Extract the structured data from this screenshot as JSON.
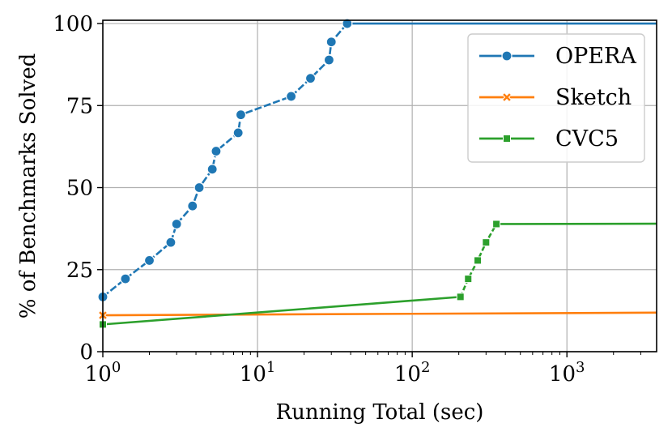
{
  "chart_data": {
    "type": "line",
    "xscale": "log",
    "xlabel": "Running Total (sec)",
    "ylabel": "% of Benchmarks Solved",
    "xlim": [
      1,
      3800
    ],
    "ylim": [
      0,
      101
    ],
    "x_ticks": [
      {
        "value": 1,
        "base": "10",
        "exp": "0"
      },
      {
        "value": 10,
        "base": "10",
        "exp": "1"
      },
      {
        "value": 100,
        "base": "10",
        "exp": "2"
      },
      {
        "value": 1000,
        "base": "10",
        "exp": "3"
      }
    ],
    "y_ticks": [
      {
        "value": 0,
        "label": "0"
      },
      {
        "value": 25,
        "label": "25"
      },
      {
        "value": 50,
        "label": "50"
      },
      {
        "value": 75,
        "label": "75"
      },
      {
        "value": 100,
        "label": "100"
      }
    ],
    "grid": true,
    "legend_position": "top-right",
    "series": [
      {
        "name": "Opera",
        "legend_label": "OPERA",
        "color": "#1f77b4",
        "marker": "circle",
        "points": [
          [
            1.0,
            16.7
          ],
          [
            1.4,
            22.2
          ],
          [
            2.0,
            27.8
          ],
          [
            2.75,
            33.3
          ],
          [
            3.0,
            38.9
          ],
          [
            3.8,
            44.4
          ],
          [
            4.2,
            50.0
          ],
          [
            5.1,
            55.6
          ],
          [
            5.4,
            61.1
          ],
          [
            7.5,
            66.7
          ],
          [
            7.8,
            72.2
          ],
          [
            16.5,
            77.8
          ],
          [
            22.0,
            83.3
          ],
          [
            29.0,
            88.9
          ],
          [
            30.0,
            94.4
          ],
          [
            38.0,
            100.0
          ]
        ],
        "tail_to": 3800
      },
      {
        "name": "Sketch",
        "legend_label": "Sketch",
        "color": "#ff7f0e",
        "marker": "x",
        "points": [
          [
            1.0,
            11.1
          ]
        ],
        "tail_to": 3800,
        "tail_value": 11.9
      },
      {
        "name": "CVC5",
        "legend_label": "CVC5",
        "color": "#2ca02c",
        "marker": "square",
        "points": [
          [
            1.0,
            8.3
          ],
          [
            205.0,
            16.7
          ],
          [
            230.0,
            22.2
          ],
          [
            265.0,
            27.8
          ],
          [
            300.0,
            33.3
          ],
          [
            350.0,
            38.9
          ]
        ],
        "tail_to": 3800,
        "tail_value": 39.0
      }
    ]
  }
}
